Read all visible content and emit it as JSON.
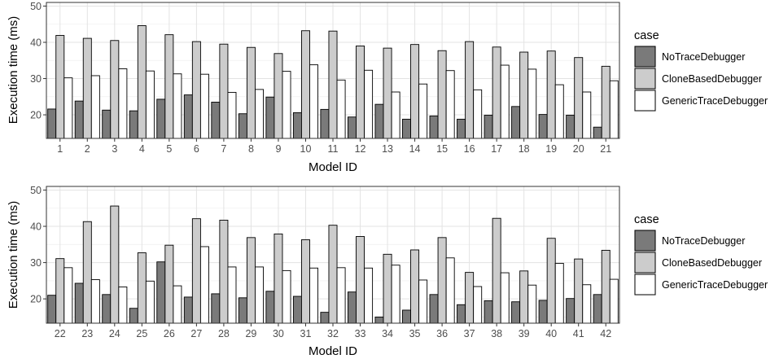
{
  "chart_data": [
    {
      "type": "bar",
      "xlabel": "Model ID",
      "ylabel": "Execution time (ms)",
      "ylim": [
        13.5,
        51
      ],
      "yticks": [
        20,
        30,
        40,
        50
      ],
      "grid": true,
      "legend_position": "right",
      "legend_title": "case",
      "categories": [
        "1",
        "2",
        "3",
        "4",
        "5",
        "6",
        "7",
        "8",
        "9",
        "10",
        "11",
        "12",
        "13",
        "14",
        "15",
        "16",
        "17",
        "18",
        "19",
        "20",
        "21"
      ],
      "series": [
        {
          "name": "NoTraceDebugger",
          "color": "#7a7a7a",
          "values": [
            21.6,
            23.8,
            21.3,
            21.1,
            24.3,
            25.5,
            23.5,
            20.3,
            24.9,
            20.6,
            21.5,
            19.4,
            22.9,
            18.8,
            19.7,
            18.8,
            19.9,
            22.3,
            20.1,
            19.9,
            16.6
          ]
        },
        {
          "name": "CloneBasedDebugger",
          "color": "#cccccc",
          "values": [
            41.9,
            41.1,
            40.5,
            44.6,
            42.1,
            40.2,
            39.5,
            38.6,
            36.9,
            43.2,
            43.1,
            39.0,
            38.4,
            39.4,
            37.7,
            40.2,
            38.7,
            37.3,
            37.6,
            35.8,
            33.4
          ]
        },
        {
          "name": "GenericTraceDebugger",
          "color": "#ffffff",
          "values": [
            30.2,
            30.8,
            32.7,
            32.1,
            31.3,
            31.2,
            26.2,
            27.0,
            32.0,
            33.8,
            29.6,
            32.3,
            26.3,
            28.5,
            32.2,
            26.9,
            33.7,
            32.6,
            28.3,
            26.3,
            29.4
          ]
        }
      ]
    },
    {
      "type": "bar",
      "xlabel": "Model ID",
      "ylabel": "Execution time (ms)",
      "ylim": [
        13.3,
        51
      ],
      "yticks": [
        20,
        30,
        40,
        50
      ],
      "grid": true,
      "legend_position": "right",
      "legend_title": "case",
      "categories": [
        "22",
        "23",
        "24",
        "25",
        "26",
        "27",
        "28",
        "29",
        "30",
        "31",
        "32",
        "33",
        "34",
        "35",
        "36",
        "37",
        "38",
        "39",
        "40",
        "41",
        "42"
      ],
      "series": [
        {
          "name": "NoTraceDebugger",
          "color": "#7a7a7a",
          "values": [
            21.0,
            24.3,
            21.2,
            17.4,
            30.2,
            20.5,
            21.4,
            20.3,
            22.1,
            20.7,
            16.3,
            21.9,
            15.0,
            16.9,
            21.2,
            18.4,
            19.5,
            19.2,
            19.6,
            20.1,
            21.2
          ]
        },
        {
          "name": "CloneBasedDebugger",
          "color": "#cccccc",
          "values": [
            31.1,
            41.3,
            45.6,
            32.7,
            34.8,
            42.1,
            41.7,
            36.9,
            37.9,
            36.3,
            40.3,
            37.2,
            32.3,
            33.5,
            36.9,
            27.3,
            42.2,
            27.7,
            36.7,
            31.0,
            33.4
          ]
        },
        {
          "name": "GenericTraceDebugger",
          "color": "#ffffff",
          "values": [
            28.6,
            25.3,
            23.3,
            24.9,
            23.6,
            34.4,
            28.8,
            28.8,
            27.8,
            28.5,
            28.6,
            28.5,
            29.3,
            25.2,
            31.3,
            23.4,
            27.2,
            23.8,
            29.8,
            23.9,
            25.4
          ]
        }
      ]
    }
  ]
}
